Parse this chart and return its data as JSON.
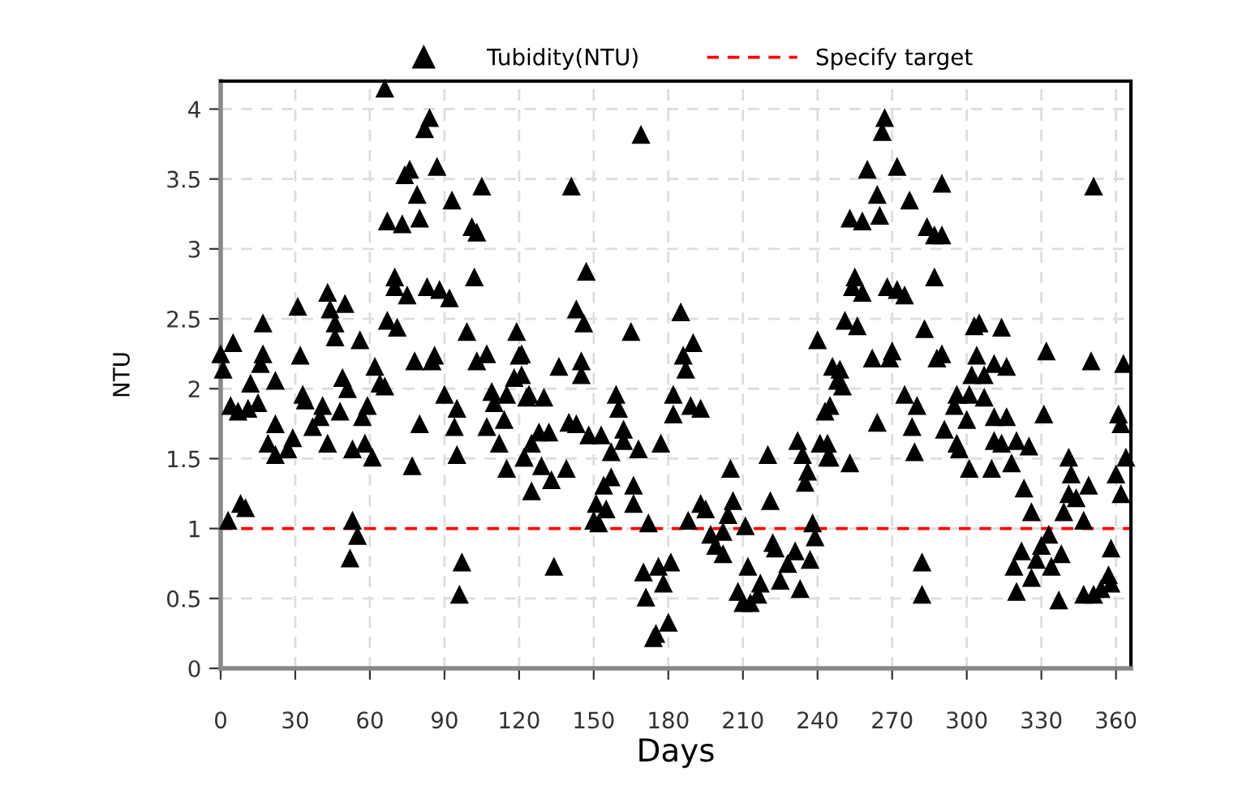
{
  "chart_data": {
    "type": "scatter",
    "xlabel": "Days",
    "ylabel": "NTU",
    "xlim": [
      0,
      366
    ],
    "ylim": [
      0,
      4.2
    ],
    "xticks": [
      0,
      30,
      60,
      90,
      120,
      150,
      180,
      210,
      240,
      270,
      300,
      330,
      360
    ],
    "yticks": [
      0,
      0.5,
      1,
      1.5,
      2,
      2.5,
      3,
      3.5,
      4
    ],
    "grid": true,
    "legend": "top",
    "marker": "triangle",
    "series": [
      {
        "name": "Tubidity(NTU)",
        "color": "#000000",
        "x": [
          0,
          5,
          1,
          4,
          7,
          11,
          15,
          17,
          17,
          16,
          12,
          22,
          3,
          8,
          10,
          22,
          19,
          22,
          27,
          29,
          31,
          32,
          33,
          34,
          37,
          40,
          41,
          43,
          44,
          46,
          46,
          50,
          43,
          49,
          51,
          48,
          53,
          55,
          52,
          56,
          53,
          58,
          61,
          57,
          59,
          62,
          64,
          66,
          67,
          71,
          67,
          73,
          80,
          74,
          76,
          79,
          82,
          84,
          87,
          70,
          70,
          75,
          83,
          88,
          92,
          78,
          86,
          85,
          80,
          77,
          66,
          93,
          101,
          103,
          105,
          102,
          99,
          103,
          107,
          90,
          95,
          94,
          95,
          97,
          96,
          109,
          110,
          107,
          112,
          114,
          115,
          119,
          120,
          118,
          123,
          125,
          122,
          125,
          115,
          169,
          141,
          147,
          143,
          146,
          165,
          185,
          190,
          186,
          187,
          121,
          121,
          136,
          145,
          145,
          124,
          130,
          159,
          160,
          182,
          182,
          189,
          193,
          122,
          128,
          132,
          129,
          133,
          139,
          140,
          143,
          148,
          153,
          157,
          162,
          162,
          168,
          177,
          134,
          154,
          166,
          166,
          157,
          151,
          150,
          152,
          155,
          172,
          170,
          176,
          181,
          178,
          171,
          180,
          174,
          175,
          188,
          193,
          195,
          197,
          199,
          202,
          202,
          205,
          206,
          211,
          204,
          212,
          208,
          210,
          213,
          216,
          217,
          220,
          221,
          222,
          223,
          225,
          228,
          231,
          233,
          237,
          238,
          239,
          232,
          234,
          235,
          236,
          241,
          244,
          245,
          243,
          245,
          240,
          246,
          248,
          267,
          266,
          260,
          272,
          264,
          277,
          290,
          253,
          258,
          265,
          284,
          287,
          290,
          255,
          254,
          258,
          268,
          272,
          275,
          287,
          251,
          256,
          283,
          262,
          269,
          270,
          288,
          290,
          303,
          305,
          314,
          304,
          302,
          307,
          311,
          316,
          332,
          350,
          363,
          249,
          250,
          275,
          280,
          296,
          301,
          307,
          295,
          311,
          316,
          331,
          264,
          278,
          300,
          291,
          296,
          297,
          311,
          314,
          320,
          325,
          361,
          362,
          364,
          244,
          253,
          279,
          301,
          310,
          318,
          341,
          342,
          360,
          362,
          323,
          341,
          344,
          349,
          347,
          326,
          339,
          333,
          330,
          322,
          319,
          328,
          334,
          338,
          358,
          282,
          282,
          320,
          326,
          337,
          347,
          351,
          354,
          357,
          358,
          351
        ],
        "values": [
          2.25,
          2.33,
          2.14,
          1.88,
          1.84,
          1.86,
          1.9,
          2.47,
          2.25,
          2.18,
          2.04,
          2.06,
          1.06,
          1.18,
          1.15,
          1.75,
          1.61,
          1.53,
          1.57,
          1.65,
          2.59,
          2.24,
          1.96,
          1.92,
          1.73,
          1.8,
          1.88,
          2.69,
          2.57,
          2.47,
          2.37,
          2.61,
          1.61,
          2.08,
          2.0,
          1.84,
          1.06,
          0.95,
          0.79,
          2.35,
          1.57,
          1.61,
          1.51,
          1.8,
          1.88,
          2.16,
          2.04,
          2.02,
          2.49,
          2.44,
          3.2,
          3.18,
          3.22,
          3.53,
          3.57,
          3.39,
          3.86,
          3.94,
          3.59,
          2.8,
          2.73,
          2.67,
          2.73,
          2.71,
          2.65,
          2.2,
          2.24,
          2.2,
          1.75,
          1.45,
          4.15,
          3.35,
          3.16,
          3.12,
          3.45,
          2.8,
          2.41,
          2.2,
          2.25,
          1.96,
          1.86,
          1.73,
          1.53,
          0.76,
          0.53,
          1.98,
          1.9,
          1.73,
          1.61,
          1.78,
          1.43,
          2.41,
          2.24,
          2.08,
          1.94,
          1.61,
          1.51,
          1.27,
          1.96,
          3.82,
          3.45,
          2.84,
          2.57,
          2.47,
          2.41,
          2.55,
          2.33,
          2.24,
          2.14,
          2.25,
          2.1,
          2.16,
          2.2,
          2.1,
          1.96,
          1.94,
          1.96,
          1.86,
          1.96,
          1.82,
          1.88,
          1.86,
          1.51,
          1.69,
          1.69,
          1.45,
          1.35,
          1.43,
          1.76,
          1.75,
          1.67,
          1.67,
          1.55,
          1.71,
          1.63,
          1.57,
          1.61,
          0.73,
          1.31,
          1.31,
          1.18,
          1.37,
          1.18,
          1.06,
          1.04,
          1.14,
          1.04,
          0.69,
          0.73,
          0.76,
          0.61,
          0.51,
          0.33,
          0.22,
          0.25,
          1.06,
          1.18,
          1.14,
          0.96,
          0.88,
          0.82,
          0.98,
          1.43,
          1.2,
          1.02,
          1.1,
          0.73,
          0.55,
          0.47,
          0.47,
          0.53,
          0.61,
          1.53,
          1.2,
          0.9,
          0.86,
          0.63,
          0.75,
          0.84,
          0.57,
          0.78,
          1.04,
          0.94,
          1.63,
          1.53,
          1.33,
          1.41,
          1.61,
          1.61,
          1.51,
          1.84,
          1.88,
          2.35,
          2.16,
          2.06,
          3.94,
          3.84,
          3.57,
          3.59,
          3.39,
          3.35,
          3.47,
          3.22,
          3.2,
          3.24,
          3.16,
          3.1,
          3.1,
          2.8,
          2.73,
          2.69,
          2.73,
          2.71,
          2.67,
          2.8,
          2.49,
          2.45,
          2.43,
          2.22,
          2.22,
          2.27,
          2.22,
          2.25,
          2.45,
          2.47,
          2.44,
          2.24,
          2.1,
          2.1,
          2.18,
          2.16,
          2.27,
          2.2,
          2.18,
          2.14,
          2.02,
          1.96,
          1.88,
          1.96,
          1.96,
          1.94,
          1.88,
          1.8,
          1.8,
          1.82,
          1.76,
          1.73,
          1.78,
          1.71,
          1.61,
          1.57,
          1.63,
          1.61,
          1.63,
          1.59,
          1.82,
          1.75,
          1.51,
          1.51,
          1.47,
          1.55,
          1.43,
          1.43,
          1.47,
          1.51,
          1.39,
          1.39,
          1.25,
          1.29,
          1.25,
          1.22,
          1.31,
          1.06,
          1.12,
          1.12,
          0.96,
          0.88,
          0.84,
          0.73,
          0.78,
          0.73,
          0.82,
          0.86,
          0.76,
          0.53,
          0.55,
          0.65,
          0.49,
          0.53,
          0.53,
          0.57,
          0.67,
          0.61,
          3.45
        ]
      }
    ],
    "ref_lines": [
      {
        "axis": "y",
        "value": 1,
        "label": "Specify target",
        "color": "#ff0000",
        "line_style": "dashed"
      }
    ]
  }
}
